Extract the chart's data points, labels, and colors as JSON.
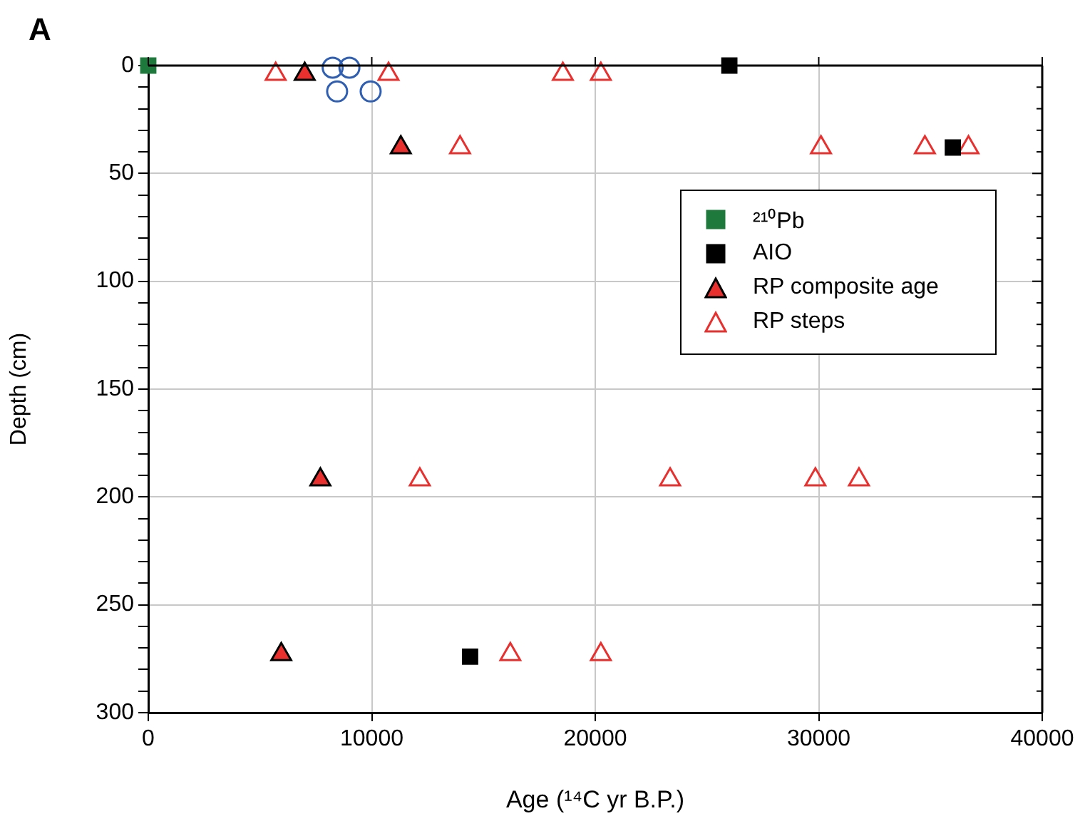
{
  "chart_data": {
    "type": "scatter",
    "xlabel": "Age (¹⁴C yr B.P.)",
    "ylabel": "Depth (cm)",
    "annotations": [
      "A"
    ],
    "xlim": [
      0,
      40000
    ],
    "xticks": [
      0,
      10000,
      20000,
      30000,
      40000
    ],
    "ylim": [
      300,
      0
    ],
    "yticks": [
      0,
      {
        "value": 10,
        "label": null
      },
      {
        "value": 20,
        "label": null
      },
      {
        "value": 30,
        "label": null
      },
      {
        "value": 40,
        "label": null
      },
      50,
      {
        "value": 60,
        "label": null
      },
      {
        "value": 70,
        "label": null
      },
      {
        "value": 80,
        "label": null
      },
      {
        "value": 90,
        "label": null
      },
      100,
      {
        "value": 110,
        "label": null
      },
      {
        "value": 120,
        "label": null
      },
      {
        "value": 130,
        "label": null
      },
      {
        "value": 140,
        "label": null
      },
      150,
      {
        "value": 160,
        "label": null
      },
      {
        "value": 170,
        "label": null
      },
      {
        "value": 180,
        "label": null
      },
      {
        "value": 190,
        "label": null
      },
      200,
      {
        "value": 210,
        "label": null
      },
      {
        "value": 220,
        "label": null
      },
      {
        "value": 230,
        "label": null
      },
      {
        "value": 240,
        "label": null
      },
      250,
      {
        "value": 260,
        "label": null
      },
      {
        "value": 270,
        "label": null
      },
      {
        "value": 280,
        "label": null
      },
      {
        "value": 290,
        "label": null
      },
      300
    ],
    "grid": true,
    "legend": "right",
    "series": [
      {
        "name": "²¹⁰Pb",
        "color": "#1e7a3c",
        "marker": "square",
        "x": [
          0
        ],
        "values": [
          0
        ]
      },
      {
        "name": "AIO",
        "color": "#000000",
        "marker": "square",
        "x": [
          26000,
          36000,
          14400
        ],
        "values": [
          0,
          38,
          274
        ]
      },
      {
        "color": "#2f5fb3",
        "marker": "circle-open",
        "x": [
          8250,
          9000,
          8450,
          9950
        ],
        "values": [
          1,
          1,
          12,
          12
        ]
      },
      {
        "name": "RP composite age",
        "color": "#e8302f",
        "marker": "triangle",
        "x": [
          7000,
          11300,
          7700,
          5950
        ],
        "values": [
          4,
          38,
          192,
          273
        ]
      },
      {
        "name": "RP steps",
        "color": "#e8302f",
        "marker": "triangle-open",
        "x": [
          5700,
          10750,
          18550,
          20250,
          13950,
          30100,
          34750,
          36700,
          12150,
          23350,
          29850,
          31800,
          16200,
          20250
        ],
        "values": [
          4,
          4,
          4,
          4,
          38,
          38,
          38,
          38,
          192,
          192,
          192,
          192,
          273,
          273
        ]
      }
    ]
  }
}
